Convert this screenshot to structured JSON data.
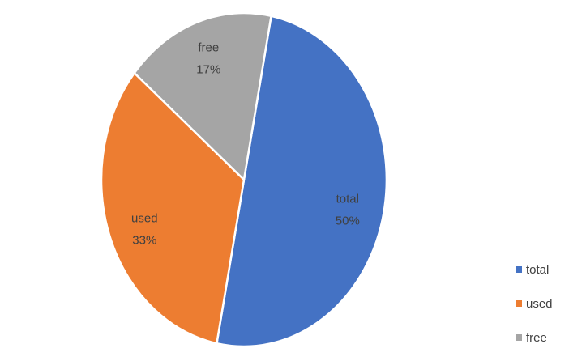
{
  "chart_data": {
    "type": "pie",
    "title": "",
    "categories": [
      "total",
      "used",
      "free"
    ],
    "values": [
      50,
      33,
      17
    ],
    "value_labels": [
      "50%",
      "33%",
      "17%"
    ],
    "colors": [
      "#4472C4",
      "#ED7D31",
      "#A5A5A5"
    ],
    "start_angle_deg": 11,
    "direction": "clockwise",
    "slice_border_color": "#ffffff",
    "legend": {
      "position": "bottom-right",
      "entries": [
        "total",
        "used",
        "free"
      ]
    }
  }
}
